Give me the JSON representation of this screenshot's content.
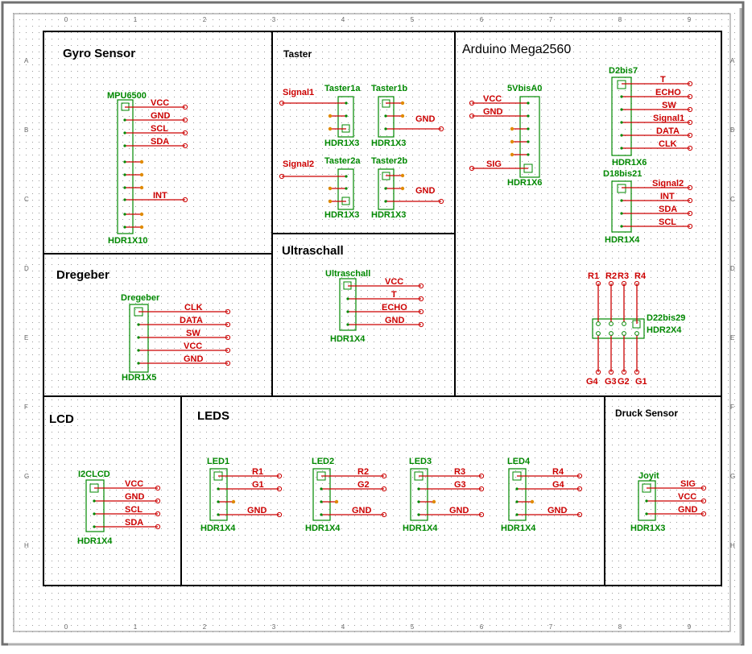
{
  "colors": {
    "net": "#cc0000",
    "part": "#008800",
    "pin": "#cc0000",
    "dot": "#e08a00",
    "frame": "#000000",
    "grid": "#9a9a9a",
    "border": "#707070"
  },
  "ruler": {
    "columns": [
      "0",
      "1",
      "2",
      "3",
      "4",
      "5",
      "6",
      "7",
      "8",
      "9"
    ],
    "rows": [
      "A",
      "B",
      "C",
      "D",
      "E",
      "F",
      "G",
      "H"
    ]
  },
  "sections": {
    "gyro": "Gyro Sensor",
    "taster": "Taster",
    "arduino": "Arduino Mega2560",
    "ultraschall": "Ultraschall",
    "dregeber": "Dregeber",
    "lcd": "LCD",
    "leds": "LEDS",
    "druck": "Druck Sensor"
  },
  "parts": {
    "mpu": {
      "ref": "MPU6500",
      "value": "HDR1X10",
      "nets": [
        "VCC",
        "GND",
        "SCL",
        "SDA",
        "INT"
      ]
    },
    "taster1a": {
      "ref": "Taster1a",
      "value": "HDR1X3",
      "net": "Signal1"
    },
    "taster1b": {
      "ref": "Taster1b",
      "value": "HDR1X3",
      "net": "GND"
    },
    "taster2a": {
      "ref": "Taster2a",
      "value": "HDR1X3",
      "net": "Signal2"
    },
    "taster2b": {
      "ref": "Taster2b",
      "value": "HDR1X3",
      "net": "GND"
    },
    "pwr": {
      "ref": "5VbisA0",
      "value": "HDR1X6",
      "nets": [
        "VCC",
        "GND",
        "SIG"
      ]
    },
    "d2": {
      "ref": "D2bis7",
      "value": "HDR1X6",
      "nets": [
        "T",
        "ECHO",
        "SW",
        "Signal1",
        "DATA",
        "CLK"
      ]
    },
    "d18": {
      "ref": "D18bis21",
      "value": "HDR1X4",
      "nets": [
        "Signal2",
        "INT",
        "SDA",
        "SCL"
      ]
    },
    "d22": {
      "ref": "D22bis29",
      "value": "HDR2X4",
      "top": [
        "R1",
        "R2",
        "R3",
        "R4"
      ],
      "bottom": [
        "G4",
        "G3",
        "G2",
        "G1"
      ]
    },
    "ultra": {
      "ref": "Ultraschall",
      "value": "HDR1X4",
      "nets": [
        "VCC",
        "T",
        "ECHO",
        "GND"
      ]
    },
    "dreh": {
      "ref": "Dregeber",
      "value": "HDR1X5",
      "nets": [
        "CLK",
        "DATA",
        "SW",
        "VCC",
        "GND"
      ]
    },
    "lcd": {
      "ref": "I2CLCD",
      "value": "HDR1X4",
      "nets": [
        "VCC",
        "GND",
        "SCL",
        "SDA"
      ]
    },
    "led1": {
      "ref": "LED1",
      "value": "HDR1X4",
      "nets": [
        "R1",
        "G1",
        "GND"
      ]
    },
    "led2": {
      "ref": "LED2",
      "value": "HDR1X4",
      "nets": [
        "R2",
        "G2",
        "GND"
      ]
    },
    "led3": {
      "ref": "LED3",
      "value": "HDR1X4",
      "nets": [
        "R3",
        "G3",
        "GND"
      ]
    },
    "led4": {
      "ref": "LED4",
      "value": "HDR1X4",
      "nets": [
        "R4",
        "G4",
        "GND"
      ]
    },
    "joy": {
      "ref": "Joyit",
      "value": "HDR1X3",
      "nets": [
        "SIG",
        "VCC",
        "GND"
      ]
    }
  }
}
